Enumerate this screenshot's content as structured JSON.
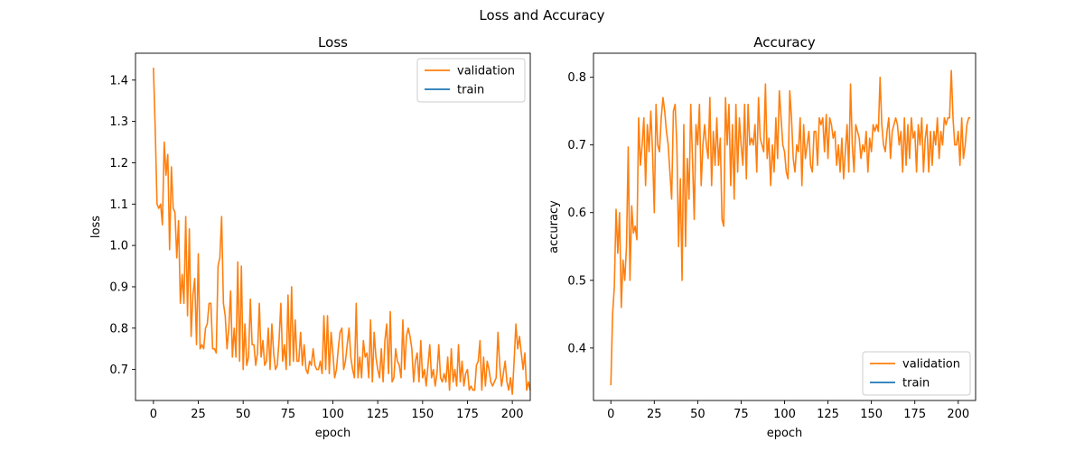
{
  "figure": {
    "suptitle": "Loss and Accuracy"
  },
  "colors": {
    "validation": "#ff7f0e",
    "train": "#1f77b4"
  },
  "chart_data": [
    {
      "type": "line",
      "title": "Loss",
      "xlabel": "epoch",
      "ylabel": "loss",
      "xlim": [
        -10,
        210
      ],
      "ylim": [
        0.625,
        1.465
      ],
      "xticks": [
        0,
        25,
        50,
        75,
        100,
        125,
        150,
        175,
        200
      ],
      "yticks": [
        0.7,
        0.8,
        0.9,
        1.0,
        1.1,
        1.2,
        1.3,
        1.4
      ],
      "ytick_decimals": 1,
      "grid": false,
      "legend_position": "upper right",
      "series": [
        {
          "name": "validation",
          "color": "#ff7f0e",
          "values": [
            1.43,
            1.28,
            1.1,
            1.09,
            1.1,
            1.05,
            1.25,
            1.17,
            1.22,
            0.99,
            1.19,
            1.09,
            1.08,
            0.97,
            1.06,
            0.86,
            0.93,
            0.86,
            1.07,
            0.83,
            1.04,
            0.78,
            0.88,
            0.92,
            0.76,
            0.98,
            0.75,
            0.76,
            0.75,
            0.8,
            0.81,
            0.86,
            0.86,
            0.75,
            0.75,
            0.74,
            0.95,
            0.97,
            1.07,
            0.86,
            0.83,
            0.75,
            0.8,
            0.89,
            0.73,
            0.8,
            0.73,
            0.96,
            0.72,
            0.95,
            0.7,
            0.81,
            0.71,
            0.73,
            0.87,
            0.76,
            0.76,
            0.71,
            0.74,
            0.86,
            0.73,
            0.77,
            0.71,
            0.72,
            0.8,
            0.7,
            0.81,
            0.74,
            0.7,
            0.71,
            0.77,
            0.86,
            0.72,
            0.76,
            0.7,
            0.88,
            0.71,
            0.9,
            0.72,
            0.82,
            0.72,
            0.72,
            0.79,
            0.71,
            0.76,
            0.7,
            0.69,
            0.72,
            0.71,
            0.75,
            0.71,
            0.7,
            0.7,
            0.72,
            0.69,
            0.83,
            0.7,
            0.83,
            0.69,
            0.79,
            0.74,
            0.68,
            0.7,
            0.75,
            0.79,
            0.8,
            0.7,
            0.72,
            0.76,
            0.8,
            0.73,
            0.7,
            0.68,
            0.86,
            0.68,
            0.73,
            0.68,
            0.77,
            0.73,
            0.74,
            0.68,
            0.82,
            0.67,
            0.79,
            0.73,
            0.7,
            0.68,
            0.75,
            0.67,
            0.77,
            0.81,
            0.69,
            0.84,
            0.67,
            0.68,
            0.75,
            0.72,
            0.71,
            0.68,
            0.82,
            0.7,
            0.78,
            0.8,
            0.78,
            0.75,
            0.67,
            0.72,
            0.74,
            0.67,
            0.77,
            0.68,
            0.7,
            0.66,
            0.71,
            0.76,
            0.68,
            0.7,
            0.66,
            0.69,
            0.76,
            0.68,
            0.67,
            0.69,
            0.67,
            0.73,
            0.65,
            0.75,
            0.67,
            0.7,
            0.66,
            0.76,
            0.67,
            0.72,
            0.66,
            0.69,
            0.7,
            0.65,
            0.66,
            0.65,
            0.65,
            0.71,
            0.72,
            0.77,
            0.65,
            0.73,
            0.66,
            0.72,
            0.7,
            0.67,
            0.66,
            0.67,
            0.68,
            0.79,
            0.71,
            0.66,
            0.69,
            0.72,
            0.67,
            0.65,
            0.68,
            0.64,
            0.72,
            0.81,
            0.75,
            0.78,
            0.74,
            0.7,
            0.74,
            0.65,
            0.67,
            0.65
          ]
        },
        {
          "name": "train",
          "color": "#1f77b4",
          "values": []
        }
      ]
    },
    {
      "type": "line",
      "title": "Accuracy",
      "xlabel": "epoch",
      "ylabel": "accuracy",
      "xlim": [
        -10,
        210
      ],
      "ylim": [
        0.3225,
        0.8355
      ],
      "xticks": [
        0,
        25,
        50,
        75,
        100,
        125,
        150,
        175,
        200
      ],
      "yticks": [
        0.4,
        0.5,
        0.6,
        0.7,
        0.8
      ],
      "ytick_decimals": 1,
      "grid": false,
      "legend_position": "lower right",
      "series": [
        {
          "name": "validation",
          "color": "#ff7f0e",
          "values": [
            0.345,
            0.45,
            0.49,
            0.605,
            0.54,
            0.6,
            0.46,
            0.53,
            0.5,
            0.55,
            0.697,
            0.5,
            0.61,
            0.57,
            0.58,
            0.56,
            0.74,
            0.67,
            0.7,
            0.74,
            0.64,
            0.73,
            0.69,
            0.75,
            0.69,
            0.6,
            0.76,
            0.7,
            0.69,
            0.74,
            0.77,
            0.75,
            0.72,
            0.7,
            0.66,
            0.62,
            0.75,
            0.76,
            0.7,
            0.55,
            0.65,
            0.5,
            0.73,
            0.55,
            0.68,
            0.62,
            0.76,
            0.68,
            0.59,
            0.73,
            0.7,
            0.76,
            0.64,
            0.7,
            0.73,
            0.7,
            0.68,
            0.77,
            0.64,
            0.72,
            0.67,
            0.74,
            0.67,
            0.71,
            0.59,
            0.58,
            0.77,
            0.7,
            0.76,
            0.64,
            0.73,
            0.62,
            0.76,
            0.66,
            0.74,
            0.7,
            0.67,
            0.76,
            0.65,
            0.76,
            0.7,
            0.71,
            0.7,
            0.73,
            0.66,
            0.77,
            0.71,
            0.7,
            0.69,
            0.79,
            0.68,
            0.71,
            0.64,
            0.7,
            0.66,
            0.74,
            0.68,
            0.78,
            0.74,
            0.7,
            0.69,
            0.66,
            0.65,
            0.78,
            0.74,
            0.68,
            0.66,
            0.7,
            0.69,
            0.74,
            0.64,
            0.73,
            0.68,
            0.7,
            0.72,
            0.67,
            0.66,
            0.72,
            0.72,
            0.67,
            0.74,
            0.73,
            0.74,
            0.69,
            0.745,
            0.68,
            0.74,
            0.73,
            0.71,
            0.72,
            0.67,
            0.7,
            0.66,
            0.71,
            0.65,
            0.69,
            0.73,
            0.66,
            0.79,
            0.7,
            0.66,
            0.73,
            0.72,
            0.71,
            0.68,
            0.7,
            0.69,
            0.72,
            0.66,
            0.71,
            0.69,
            0.73,
            0.72,
            0.73,
            0.72,
            0.8,
            0.73,
            0.7,
            0.69,
            0.72,
            0.74,
            0.68,
            0.72,
            0.73,
            0.74,
            0.73,
            0.7,
            0.72,
            0.66,
            0.74,
            0.67,
            0.73,
            0.68,
            0.74,
            0.71,
            0.72,
            0.66,
            0.73,
            0.7,
            0.74,
            0.66,
            0.71,
            0.73,
            0.66,
            0.72,
            0.67,
            0.72,
            0.7,
            0.74,
            0.68,
            0.72,
            0.7,
            0.74,
            0.73,
            0.74,
            0.74,
            0.81,
            0.74,
            0.7,
            0.7,
            0.72,
            0.67,
            0.74,
            0.68,
            0.7,
            0.73,
            0.74,
            0.74
          ]
        },
        {
          "name": "train",
          "color": "#1f77b4",
          "values": []
        }
      ]
    }
  ]
}
